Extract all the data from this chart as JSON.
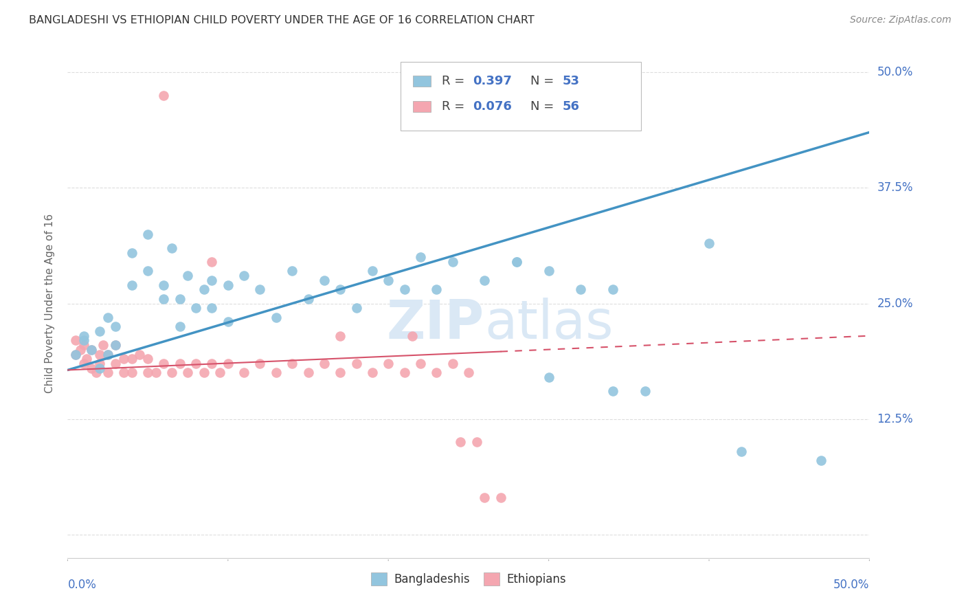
{
  "title": "BANGLADESHI VS ETHIOPIAN CHILD POVERTY UNDER THE AGE OF 16 CORRELATION CHART",
  "source": "Source: ZipAtlas.com",
  "ylabel": "Child Poverty Under the Age of 16",
  "xlim": [
    0.0,
    0.5
  ],
  "ylim": [
    -0.025,
    0.525
  ],
  "yticks": [
    0.0,
    0.125,
    0.25,
    0.375,
    0.5
  ],
  "ytick_labels": [
    "",
    "12.5%",
    "25.0%",
    "37.5%",
    "50.0%"
  ],
  "xticks": [
    0.0,
    0.1,
    0.2,
    0.3,
    0.4,
    0.5
  ],
  "blue_color": "#92c5de",
  "pink_color": "#f4a6b0",
  "blue_line_color": "#4393c3",
  "pink_line_color": "#d6526a",
  "watermark_color": "#dae8f5",
  "background_color": "#ffffff",
  "grid_color": "#dddddd",
  "title_color": "#333333",
  "axis_label_color": "#4472c4",
  "blue_scatter_x": [
    0.005,
    0.01,
    0.01,
    0.015,
    0.02,
    0.02,
    0.025,
    0.025,
    0.03,
    0.03,
    0.04,
    0.04,
    0.05,
    0.05,
    0.06,
    0.06,
    0.065,
    0.07,
    0.07,
    0.075,
    0.08,
    0.085,
    0.09,
    0.09,
    0.1,
    0.1,
    0.11,
    0.12,
    0.13,
    0.14,
    0.15,
    0.16,
    0.17,
    0.18,
    0.19,
    0.2,
    0.21,
    0.22,
    0.23,
    0.24,
    0.26,
    0.28,
    0.3,
    0.32,
    0.34,
    0.36,
    0.4,
    0.27,
    0.28,
    0.3,
    0.34,
    0.42,
    0.47
  ],
  "blue_scatter_y": [
    0.195,
    0.21,
    0.215,
    0.2,
    0.22,
    0.18,
    0.235,
    0.195,
    0.225,
    0.205,
    0.27,
    0.305,
    0.285,
    0.325,
    0.255,
    0.27,
    0.31,
    0.225,
    0.255,
    0.28,
    0.245,
    0.265,
    0.245,
    0.275,
    0.27,
    0.23,
    0.28,
    0.265,
    0.235,
    0.285,
    0.255,
    0.275,
    0.265,
    0.245,
    0.285,
    0.275,
    0.265,
    0.3,
    0.265,
    0.295,
    0.275,
    0.295,
    0.17,
    0.265,
    0.265,
    0.155,
    0.315,
    0.455,
    0.295,
    0.285,
    0.155,
    0.09,
    0.08
  ],
  "pink_scatter_x": [
    0.005,
    0.005,
    0.008,
    0.01,
    0.01,
    0.012,
    0.015,
    0.015,
    0.018,
    0.02,
    0.02,
    0.022,
    0.025,
    0.025,
    0.03,
    0.03,
    0.035,
    0.035,
    0.04,
    0.04,
    0.045,
    0.05,
    0.05,
    0.055,
    0.06,
    0.065,
    0.07,
    0.075,
    0.08,
    0.085,
    0.09,
    0.095,
    0.1,
    0.11,
    0.12,
    0.13,
    0.14,
    0.15,
    0.16,
    0.17,
    0.18,
    0.19,
    0.2,
    0.21,
    0.22,
    0.23,
    0.24,
    0.25,
    0.06,
    0.09,
    0.17,
    0.215,
    0.245,
    0.255,
    0.26,
    0.27
  ],
  "pink_scatter_y": [
    0.195,
    0.21,
    0.2,
    0.185,
    0.205,
    0.19,
    0.18,
    0.2,
    0.175,
    0.185,
    0.195,
    0.205,
    0.175,
    0.195,
    0.185,
    0.205,
    0.175,
    0.19,
    0.175,
    0.19,
    0.195,
    0.175,
    0.19,
    0.175,
    0.185,
    0.175,
    0.185,
    0.175,
    0.185,
    0.175,
    0.185,
    0.175,
    0.185,
    0.175,
    0.185,
    0.175,
    0.185,
    0.175,
    0.185,
    0.175,
    0.185,
    0.175,
    0.185,
    0.175,
    0.185,
    0.175,
    0.185,
    0.175,
    0.475,
    0.295,
    0.215,
    0.215,
    0.1,
    0.1,
    0.04,
    0.04
  ],
  "blue_trend_x0": 0.0,
  "blue_trend_y0": 0.178,
  "blue_trend_x1": 0.5,
  "blue_trend_y1": 0.435,
  "pink_trend_x0": 0.0,
  "pink_trend_y0": 0.178,
  "pink_trend_x1": 0.5,
  "pink_trend_y1": 0.215
}
